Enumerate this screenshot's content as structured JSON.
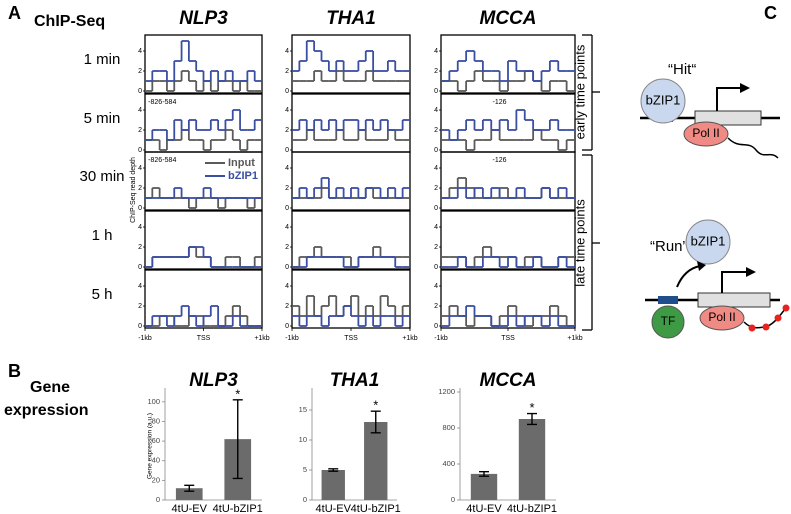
{
  "panels": [
    "A",
    "B",
    "C"
  ],
  "chip_seq": {
    "title": "ChIP-Seq",
    "genes": [
      "NLP3",
      "THA1",
      "MCCA"
    ],
    "time_points": [
      "1 min",
      "5 min",
      "30 min",
      "1 h",
      "5 h"
    ],
    "y_label": "ChIP-Seq read depth",
    "ylim": [
      0,
      5
    ],
    "yticks": [
      0,
      2,
      4
    ],
    "xlim": [
      -1000,
      1000
    ],
    "xticks": [
      {
        "value": -1000,
        "label": "-1kb"
      },
      {
        "value": 0,
        "label": "TSS"
      },
      {
        "value": 1000,
        "label": "+1kb"
      }
    ],
    "legend": [
      {
        "name": "Input",
        "color": "#5a5a5a"
      },
      {
        "name": "bZIP1",
        "color": "#3a4fa3"
      }
    ],
    "site_labels": [
      [
        -826,
        -584
      ],
      [],
      [
        -126
      ]
    ],
    "brackets": [
      "early time points",
      "late time points"
    ],
    "tracks": [
      [
        [
          [
            0,
            1,
            1,
            0,
            1,
            2,
            1,
            0,
            1,
            0,
            1,
            1,
            0,
            1,
            0,
            0
          ],
          [
            1,
            2,
            2,
            1,
            3,
            5,
            3,
            2,
            1,
            2,
            1,
            2,
            1,
            1,
            2,
            1
          ]
        ],
        [
          [
            1,
            1,
            1,
            2,
            1,
            1,
            2,
            1,
            1,
            1,
            2,
            1,
            1,
            1,
            1,
            1
          ],
          [
            2,
            3,
            5,
            4,
            3,
            2,
            3,
            2,
            2,
            3,
            4,
            2,
            2,
            3,
            2,
            2
          ]
        ],
        [
          [
            1,
            1,
            0,
            1,
            2,
            1,
            1,
            0,
            1,
            1,
            2,
            1,
            0,
            1,
            1,
            0
          ],
          [
            1,
            2,
            3,
            4,
            3,
            2,
            2,
            1,
            3,
            2,
            2,
            1,
            2,
            3,
            2,
            2
          ]
        ]
      ],
      [
        [
          [
            1,
            1,
            0,
            1,
            1,
            2,
            1,
            1,
            0,
            1,
            1,
            2,
            1,
            0,
            1,
            1
          ],
          [
            1,
            2,
            2,
            1,
            3,
            2,
            3,
            2,
            2,
            3,
            2,
            3,
            4,
            2,
            2,
            3
          ]
        ],
        [
          [
            1,
            1,
            2,
            1,
            1,
            1,
            2,
            1,
            1,
            2,
            1,
            1,
            1,
            2,
            1,
            1
          ],
          [
            2,
            3,
            2,
            3,
            2,
            3,
            2,
            3,
            3,
            2,
            3,
            2,
            3,
            2,
            2,
            3
          ]
        ],
        [
          [
            1,
            1,
            1,
            0,
            1,
            1,
            2,
            1,
            1,
            1,
            1,
            2,
            1,
            1,
            0,
            1
          ],
          [
            2,
            1,
            2,
            3,
            2,
            3,
            2,
            3,
            2,
            4,
            3,
            2,
            2,
            3,
            2,
            2
          ]
        ]
      ],
      [
        [
          [
            1,
            2,
            1,
            1,
            1,
            1,
            0,
            1,
            1,
            1,
            0,
            1,
            1,
            1,
            0,
            1
          ],
          [
            1,
            1,
            1,
            1,
            2,
            1,
            1,
            1,
            2,
            1,
            1,
            1,
            1,
            1,
            1,
            1
          ]
        ],
        [
          [
            1,
            1,
            1,
            1,
            2,
            1,
            1,
            1,
            1,
            1,
            2,
            1,
            1,
            1,
            1,
            1
          ],
          [
            1,
            2,
            1,
            2,
            3,
            1,
            2,
            1,
            2,
            1,
            2,
            2,
            1,
            2,
            1,
            2
          ]
        ],
        [
          [
            1,
            2,
            3,
            2,
            1,
            1,
            1,
            2,
            1,
            1,
            1,
            1,
            2,
            1,
            1,
            1
          ],
          [
            1,
            1,
            2,
            1,
            2,
            1,
            2,
            1,
            1,
            2,
            1,
            1,
            2,
            1,
            2,
            1
          ]
        ]
      ],
      [
        [
          [
            0,
            1,
            1,
            1,
            1,
            1,
            2,
            1,
            1,
            0,
            0,
            1,
            1,
            0,
            0,
            1
          ],
          [
            0,
            1,
            1,
            1,
            1,
            1,
            2,
            2,
            1,
            0,
            0,
            0,
            0,
            0,
            0,
            0
          ]
        ],
        [
          [
            0,
            1,
            1,
            2,
            1,
            1,
            1,
            1,
            0,
            1,
            1,
            2,
            1,
            1,
            1,
            1
          ],
          [
            0,
            0,
            1,
            1,
            1,
            1,
            1,
            0,
            0,
            1,
            1,
            1,
            1,
            1,
            0,
            0
          ]
        ],
        [
          [
            1,
            1,
            1,
            0,
            1,
            2,
            1,
            1,
            1,
            0,
            1,
            1,
            0,
            0,
            1,
            1
          ],
          [
            0,
            0,
            1,
            0,
            0,
            1,
            1,
            0,
            1,
            0,
            0,
            1,
            0,
            0,
            1,
            0
          ]
        ]
      ],
      [
        [
          [
            0,
            0,
            1,
            1,
            0,
            0,
            1,
            1,
            0,
            0,
            0,
            1,
            2,
            1,
            0,
            0
          ],
          [
            0,
            1,
            1,
            0,
            1,
            2,
            1,
            0,
            1,
            2,
            0,
            0,
            1,
            0,
            0,
            0
          ]
        ],
        [
          [
            2,
            1,
            3,
            1,
            2,
            3,
            1,
            2,
            3,
            1,
            2,
            1,
            3,
            2,
            1,
            2
          ],
          [
            1,
            0,
            1,
            1,
            0,
            1,
            1,
            2,
            1,
            0,
            1,
            0,
            1,
            1,
            0,
            1
          ]
        ],
        [
          [
            1,
            2,
            1,
            0,
            1,
            1,
            0,
            1,
            2,
            1,
            0,
            1,
            1,
            2,
            1,
            0
          ],
          [
            0,
            1,
            1,
            2,
            1,
            1,
            0,
            0,
            1,
            0,
            1,
            1,
            0,
            1,
            0,
            0
          ]
        ]
      ]
    ]
  },
  "gene_expression": {
    "title": [
      "Gene",
      "expression"
    ],
    "y_label": "Gene expression (a.u.)"
  },
  "chart_data": [
    {
      "type": "bar",
      "title": "NLP3",
      "categories": [
        "4tU-EV",
        "4tU-bZIP1"
      ],
      "values": [
        12,
        62
      ],
      "errors": [
        3,
        40
      ],
      "annotation": "*",
      "color": "#6b6b6b",
      "ylim": [
        0,
        110
      ],
      "yticks": [
        0,
        20,
        40,
        60,
        80,
        100
      ]
    },
    {
      "type": "bar",
      "title": "THA1",
      "categories": [
        "4tU-EV",
        "4tU-bZIP1"
      ],
      "values": [
        5,
        13
      ],
      "errors": [
        0.2,
        1.8
      ],
      "annotation": "*",
      "color": "#6b6b6b",
      "ylim": [
        0,
        18
      ],
      "yticks": [
        0,
        5,
        10,
        15
      ]
    },
    {
      "type": "bar",
      "title": "MCCA",
      "categories": [
        "4tU-EV",
        "4tU-bZIP1"
      ],
      "values": [
        290,
        900
      ],
      "errors": [
        25,
        60
      ],
      "annotation": "*",
      "color": "#6b6b6b",
      "ylim": [
        0,
        1200
      ],
      "yticks": [
        0,
        400,
        800,
        1200
      ]
    }
  ],
  "model": {
    "hit": "“Hit“",
    "run": "“Run”",
    "bzip1": "bZIP1",
    "pol2": "Pol II",
    "tf": "TF"
  }
}
